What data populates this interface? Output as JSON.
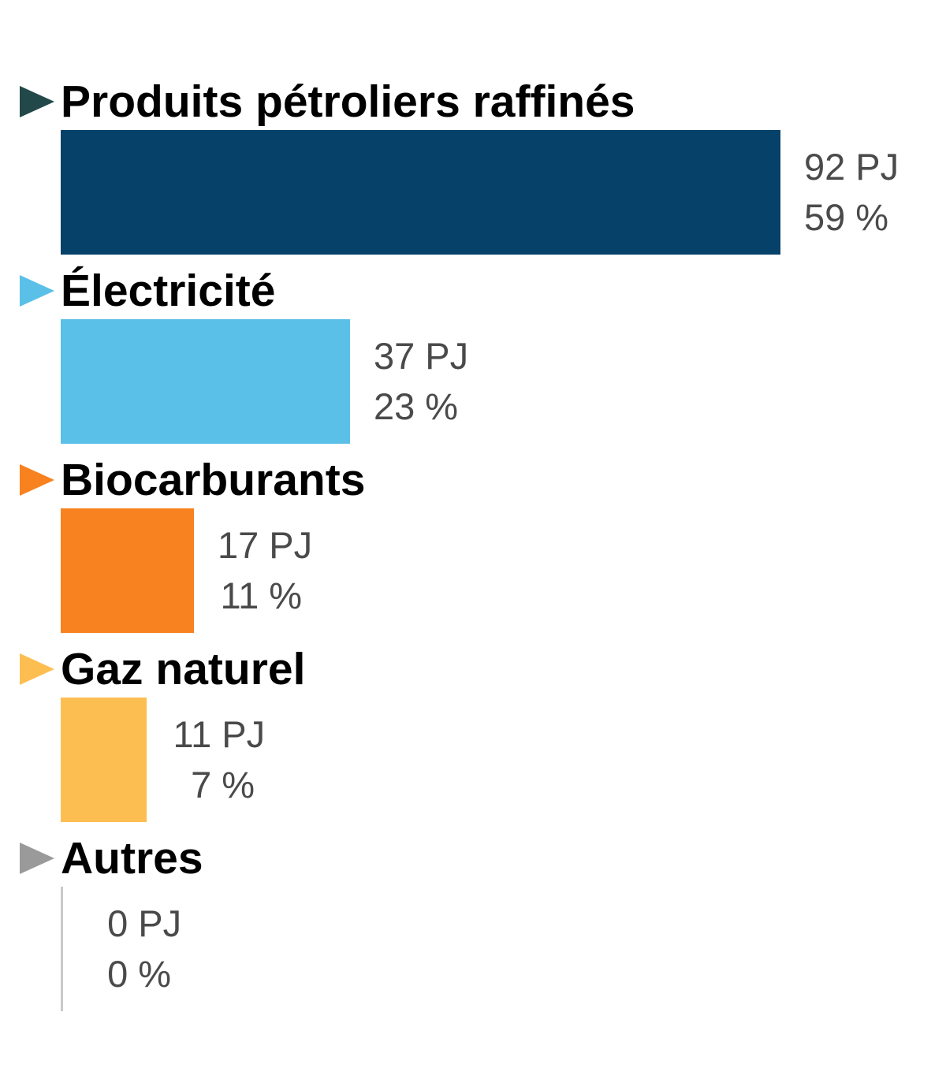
{
  "chart_data": {
    "type": "bar",
    "orientation": "horizontal",
    "title": "",
    "unit": "PJ",
    "percent_sign": "%",
    "xlim": [
      0,
      92
    ],
    "grid": false,
    "legend": "none",
    "categories": [
      "Produits pétroliers raffinés",
      "Électricité",
      "Biocarburants",
      "Gaz naturel",
      "Autres"
    ],
    "values": [
      92,
      37,
      17,
      11,
      0
    ],
    "percents": [
      59,
      23,
      11,
      7,
      0
    ],
    "items": [
      {
        "label": "Produits pétroliers raffinés",
        "value": 92,
        "percent": 59,
        "bar_color": "#054169",
        "arrow_color": "#23484a"
      },
      {
        "label": "Électricité",
        "value": 37,
        "percent": 23,
        "bar_color": "#5bc0e7",
        "arrow_color": "#5bc0e7"
      },
      {
        "label": "Biocarburants",
        "value": 17,
        "percent": 11,
        "bar_color": "#f8821f",
        "arrow_color": "#f8821f"
      },
      {
        "label": "Gaz naturel",
        "value": 11,
        "percent": 7,
        "bar_color": "#fdbe51",
        "arrow_color": "#fdbe51"
      },
      {
        "label": "Autres",
        "value": 0,
        "percent": 0,
        "bar_color": "#c9c9c9",
        "arrow_color": "#9a9a9a"
      }
    ],
    "colors": {
      "value_text": "#4a4a4a",
      "label_text": "#000000",
      "zero_stub": "#c9c9c9"
    }
  }
}
